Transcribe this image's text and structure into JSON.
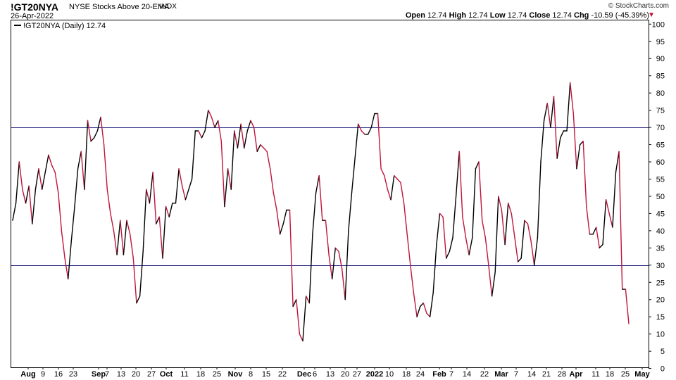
{
  "header": {
    "symbol": "!GT20NYA",
    "description": "NYSE Stocks Above 20-EMA",
    "exchange": "INDX",
    "date": "26-Apr-2022",
    "brand": "© StockCharts.com",
    "open_label": "Open",
    "open": "12.74",
    "high_label": "High",
    "high": "12.74",
    "low_label": "Low",
    "low": "12.74",
    "close_label": "Close",
    "close": "12.74",
    "chg_label": "Chg",
    "chg": "-10.59 (-45.39%)",
    "chg_arrow": "▼"
  },
  "legend": {
    "label": "!GT20NYA (Daily) 12.74"
  },
  "colors": {
    "up": "#000000",
    "down": "#c0143c",
    "ref_line": "#1a1a7a",
    "grid": "#000000"
  },
  "chart_data": {
    "type": "line",
    "title": "!GT20NYA NYSE Stocks Above 20-EMA",
    "series": [
      {
        "name": "!GT20NYA (Daily)",
        "values": [
          43,
          48,
          60,
          52,
          48,
          53,
          42,
          52,
          58,
          52,
          57,
          62,
          59,
          57,
          51,
          40,
          32,
          26,
          37,
          47,
          58,
          63,
          52,
          72,
          66,
          67,
          69,
          73,
          65,
          52,
          45,
          40,
          33,
          43,
          33,
          43,
          39,
          32,
          19,
          21,
          34,
          52,
          48,
          57,
          42,
          44,
          32,
          47,
          44,
          48,
          48,
          58,
          53,
          49,
          52,
          55,
          69,
          69,
          67,
          69,
          75,
          73,
          70,
          72,
          66,
          47,
          58,
          52,
          69,
          64,
          71,
          64,
          69,
          72,
          70,
          63,
          65,
          64,
          63,
          58,
          51,
          46,
          39,
          42,
          46,
          46,
          18,
          20,
          10,
          8,
          21,
          19,
          39,
          51,
          56,
          43,
          43,
          33,
          26,
          35,
          34,
          29,
          20,
          40,
          51,
          61,
          71,
          69,
          68,
          68,
          70,
          74,
          74,
          58,
          56,
          52,
          49,
          56,
          55,
          54,
          48,
          39,
          30,
          22,
          15,
          18,
          19,
          16,
          15,
          22,
          36,
          45,
          44,
          32,
          34,
          38,
          50,
          63,
          44,
          38,
          33,
          38,
          58,
          60,
          43,
          38,
          30,
          21,
          28,
          50,
          46,
          36,
          48,
          45,
          38,
          31,
          32,
          43,
          42,
          37,
          30,
          38,
          60,
          72,
          77,
          70,
          79,
          61,
          67,
          69,
          69,
          83,
          74,
          58,
          65,
          66,
          47,
          39,
          39,
          41,
          35,
          36,
          49,
          45,
          41,
          57,
          63,
          23,
          23,
          13
        ]
      }
    ],
    "y_axis": {
      "min": 0,
      "max": 100,
      "ticks": [
        0,
        5,
        10,
        15,
        20,
        25,
        30,
        35,
        40,
        45,
        50,
        55,
        60,
        65,
        70,
        75,
        80,
        85,
        90,
        95,
        100
      ],
      "side": "right"
    },
    "x_tick_labels": [
      "Aug",
      "9",
      "16",
      "23",
      "Sep",
      "7",
      "13",
      "20",
      "27",
      "Oct",
      "11",
      "18",
      "25",
      "Nov",
      "8",
      "15",
      "22",
      "Dec",
      "6",
      "13",
      "20",
      "27",
      "2022",
      "10",
      "18",
      "24",
      "Feb",
      "7",
      "14",
      "22",
      "Mar",
      "7",
      "14",
      "21",
      "28",
      "Apr",
      "11",
      "18",
      "25",
      "May"
    ],
    "reference_lines": [
      70,
      30
    ],
    "grid": false
  }
}
